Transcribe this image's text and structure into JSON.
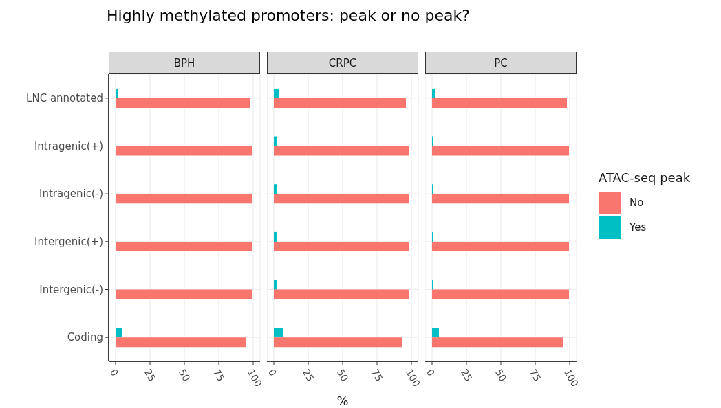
{
  "chart_data": [
    {
      "type": "bar",
      "orientation": "horizontal",
      "title": "Highly methylated promoters: peak or no peak?",
      "subtitle": "BPH",
      "categories": [
        "LNC annotated",
        "Intragenic(+)",
        "Intragenic(-)",
        "Intergenic(+)",
        "Intergenic(-)",
        "Coding"
      ],
      "series": [
        {
          "color": "#f8766d",
          "values": [
            98,
            99.5,
            99.5,
            99.5,
            99.5,
            95
          ]
        },
        {
          "color": "#00bfc4",
          "values": [
            2,
            0.5,
            0.5,
            0.5,
            0.5,
            5
          ]
        }
      ],
      "xlim": [
        -5,
        105
      ],
      "xticks": [
        0,
        25,
        50,
        75,
        100
      ],
      "grid": true
    },
    {
      "type": "bar",
      "orientation": "horizontal",
      "subtitle": "CRPC",
      "xlabel": "%",
      "categories": [
        null,
        null,
        null,
        null,
        null,
        null
      ],
      "series": [
        {
          "color": "#f8766d",
          "values": [
            96,
            98,
            98,
            98,
            98,
            93
          ]
        },
        {
          "color": "#00bfc4",
          "values": [
            4,
            2,
            2,
            2,
            2,
            7
          ]
        }
      ],
      "xlim": [
        -5,
        105
      ],
      "xticks": [
        0,
        25,
        50,
        75,
        100
      ],
      "grid": true,
      "tick_labels": "x"
    },
    {
      "type": "bar",
      "orientation": "horizontal",
      "subtitle": "PC",
      "legend": "right",
      "legend_title": "ATAC-seq peak",
      "categories": [
        null,
        null,
        null,
        null,
        null,
        null
      ],
      "series": [
        {
          "name": "No",
          "color": "#f8766d",
          "values": [
            98,
            99.5,
            99.5,
            99.5,
            99.5,
            95
          ]
        },
        {
          "name": "Yes",
          "color": "#00bfc4",
          "values": [
            2,
            0.5,
            0.5,
            0.5,
            0.5,
            5
          ]
        }
      ],
      "xlim": [
        -5,
        105
      ],
      "xticks": [
        0,
        25,
        50,
        75,
        100
      ],
      "grid": true,
      "tick_labels": "x"
    }
  ]
}
